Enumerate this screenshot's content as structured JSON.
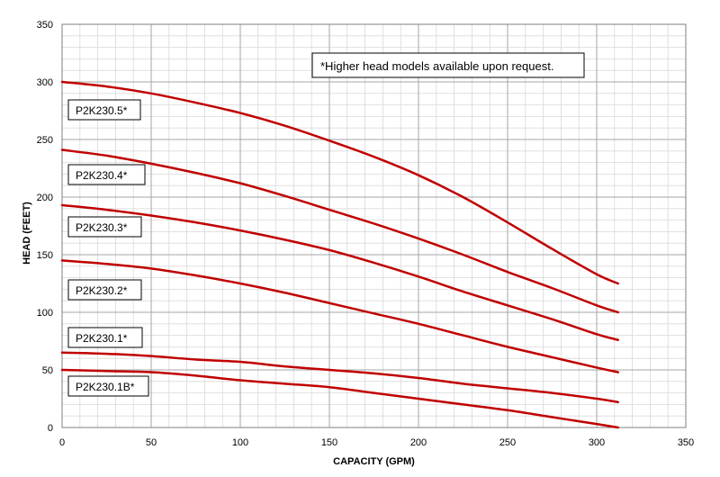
{
  "chart_data": {
    "type": "line",
    "title": "",
    "xlabel": "CAPACITY (GPM)",
    "ylabel": "HEAD (FEET)",
    "xlim": [
      0,
      350
    ],
    "ylim": [
      0,
      350
    ],
    "x_major_ticks": [
      "0",
      "50",
      "100",
      "150",
      "200",
      "250",
      "300",
      "350"
    ],
    "y_major_ticks": [
      "0",
      "50",
      "100",
      "150",
      "200",
      "250",
      "300",
      "350"
    ],
    "grid": true,
    "line_color": "#c00000",
    "annotation": "*Higher head models available upon request.",
    "series": [
      {
        "name": "P2K230.5*",
        "x": [
          0,
          25,
          50,
          75,
          100,
          125,
          150,
          175,
          200,
          225,
          250,
          275,
          300,
          312
        ],
        "y": [
          300,
          296,
          290,
          282,
          273,
          262,
          249,
          235,
          219,
          200,
          178,
          155,
          133,
          125
        ]
      },
      {
        "name": "P2K230.4*",
        "x": [
          0,
          25,
          50,
          75,
          100,
          125,
          150,
          175,
          200,
          225,
          250,
          275,
          300,
          312
        ],
        "y": [
          241,
          236,
          229,
          221,
          212,
          201,
          189,
          177,
          164,
          150,
          135,
          121,
          106,
          100
        ]
      },
      {
        "name": "P2K230.3*",
        "x": [
          0,
          25,
          50,
          75,
          100,
          125,
          150,
          175,
          200,
          225,
          250,
          275,
          300,
          312
        ],
        "y": [
          193,
          189,
          184,
          178,
          171,
          163,
          154,
          143,
          131,
          118,
          106,
          94,
          81,
          76
        ]
      },
      {
        "name": "P2K230.2*",
        "x": [
          0,
          25,
          50,
          75,
          100,
          125,
          150,
          175,
          200,
          225,
          250,
          275,
          300,
          312
        ],
        "y": [
          145,
          142,
          138,
          132,
          125,
          117,
          108,
          99,
          90,
          80,
          70,
          61,
          52,
          48
        ]
      },
      {
        "name": "P2K230.1*",
        "x": [
          0,
          25,
          50,
          75,
          100,
          125,
          150,
          175,
          200,
          225,
          250,
          275,
          300,
          312
        ],
        "y": [
          65,
          64,
          62,
          59,
          57,
          53,
          50,
          47,
          43,
          38,
          34,
          30,
          25,
          22
        ]
      },
      {
        "name": "P2K230.1B*",
        "x": [
          0,
          25,
          50,
          75,
          100,
          125,
          150,
          175,
          200,
          225,
          250,
          275,
          300,
          312
        ],
        "y": [
          50,
          49,
          48,
          45,
          41,
          38,
          35,
          30,
          25,
          20,
          15,
          9,
          3,
          0
        ]
      }
    ]
  }
}
